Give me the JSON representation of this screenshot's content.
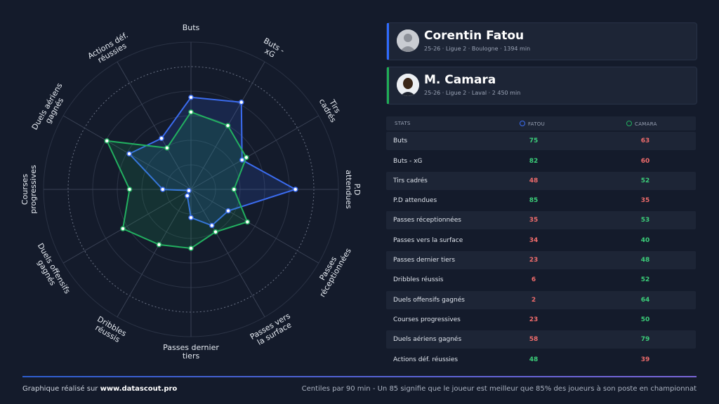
{
  "player1": {
    "name": "Corentin Fatou",
    "info": "25-26 · Ligue 2 · Boulogne · 1394 min",
    "color": "#2f6bff"
  },
  "player2": {
    "name": "M. Camara",
    "info": "25-26 · Ligue 2 · Laval · 2 450 min",
    "color": "#1fae55"
  },
  "table": {
    "header_stats": "STATS",
    "header_p1": "FATOU",
    "header_p2": "CAMARA"
  },
  "chart_data": {
    "type": "radar",
    "categories": [
      "Buts",
      "Buts - xG",
      "Tirs cadrés",
      "P.D attendues",
      "Passes réceptionnées",
      "Passes vers la surface",
      "Passes dernier tiers",
      "Dribbles réussis",
      "Duels offensifs gagnés",
      "Courses progressives",
      "Duels aériens gagnés",
      "Actions déf. réussies"
    ],
    "axis_labels": [
      [
        "Buts"
      ],
      [
        "Buts -",
        "xG"
      ],
      [
        "Tirs",
        "cadrés"
      ],
      [
        "P.D",
        "attendues"
      ],
      [
        "Passes",
        "réceptionnées"
      ],
      [
        "Passes vers",
        "la surface"
      ],
      [
        "Passes dernier",
        "tiers"
      ],
      [
        "Dribbles",
        "réussis"
      ],
      [
        "Duels offensifs",
        "gagnés"
      ],
      [
        "Courses",
        "progressives"
      ],
      [
        "Duels aériens",
        "gagnés"
      ],
      [
        "Actions déf.",
        "réussies"
      ]
    ],
    "rmax": 100,
    "series": [
      {
        "name": "FATOU",
        "values": [
          75,
          82,
          48,
          85,
          35,
          34,
          23,
          6,
          2,
          23,
          58,
          48
        ]
      },
      {
        "name": "CAMARA",
        "values": [
          63,
          60,
          52,
          35,
          53,
          40,
          48,
          52,
          64,
          50,
          79,
          39
        ]
      }
    ]
  },
  "colors": {
    "fatou": "#3b6cf0",
    "camara": "#22b060",
    "high": "#3ccf7a",
    "low": "#f06c6c"
  },
  "footer": {
    "credit_prefix": "Graphique réalisé sur ",
    "credit_site": "www.datascout.pro",
    "note": "Centiles par 90 min - Un 85 signifie que le joueur est meilleur que 85% des joueurs à son poste en championnat"
  }
}
